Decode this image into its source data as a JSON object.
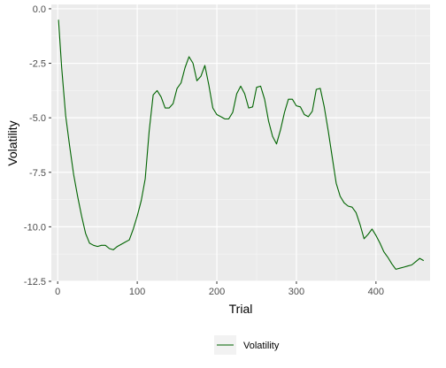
{
  "chart_data": {
    "type": "line",
    "title": "",
    "xlabel": "Trial",
    "ylabel": "Volatility",
    "xlim": [
      -8,
      468
    ],
    "ylim": [
      -12.5,
      0.2
    ],
    "x_ticks": [
      0,
      100,
      200,
      300,
      400
    ],
    "x_tick_labels": [
      "0",
      "100",
      "200",
      "300",
      "400"
    ],
    "y_ticks": [
      0,
      -2.5,
      -5,
      -7.5,
      -10,
      -12.5
    ],
    "y_tick_labels": [
      "0.0",
      "-2.5",
      "-5.0",
      "-7.5",
      "-10.0",
      "-12.5"
    ],
    "grid": true,
    "legend": {
      "position": "bottom",
      "entries": [
        "Volatility"
      ]
    },
    "colors": {
      "line": "#006400",
      "panel": "#ebebeb",
      "grid": "#ffffff"
    },
    "series": [
      {
        "name": "Volatility",
        "x": [
          1,
          5,
          10,
          15,
          20,
          25,
          30,
          35,
          40,
          45,
          50,
          55,
          60,
          65,
          70,
          75,
          80,
          85,
          90,
          95,
          100,
          105,
          110,
          115,
          120,
          125,
          130,
          135,
          140,
          145,
          150,
          155,
          160,
          165,
          170,
          175,
          180,
          185,
          190,
          195,
          200,
          205,
          210,
          215,
          220,
          225,
          230,
          235,
          240,
          245,
          250,
          255,
          260,
          265,
          270,
          275,
          280,
          285,
          290,
          295,
          300,
          305,
          310,
          315,
          320,
          325,
          330,
          335,
          340,
          345,
          350,
          355,
          360,
          365,
          370,
          375,
          380,
          385,
          390,
          395,
          400,
          405,
          410,
          415,
          420,
          425,
          430,
          435,
          440,
          445,
          450,
          455,
          460
        ],
        "y": [
          -0.5,
          -2.7,
          -4.9,
          -6.3,
          -7.6,
          -8.6,
          -9.5,
          -10.3,
          -10.75,
          -10.85,
          -10.9,
          -10.85,
          -10.85,
          -11.0,
          -11.05,
          -10.9,
          -10.8,
          -10.7,
          -10.6,
          -10.1,
          -9.5,
          -8.8,
          -7.8,
          -5.6,
          -3.95,
          -3.75,
          -4.05,
          -4.55,
          -4.55,
          -4.35,
          -3.65,
          -3.4,
          -2.7,
          -2.2,
          -2.5,
          -3.3,
          -3.1,
          -2.6,
          -3.5,
          -4.55,
          -4.85,
          -4.95,
          -5.05,
          -5.05,
          -4.75,
          -3.9,
          -3.55,
          -3.9,
          -4.55,
          -4.5,
          -3.6,
          -3.55,
          -4.15,
          -5.15,
          -5.85,
          -6.2,
          -5.55,
          -4.75,
          -4.15,
          -4.15,
          -4.45,
          -4.5,
          -4.85,
          -4.95,
          -4.7,
          -3.7,
          -3.65,
          -4.5,
          -5.6,
          -6.8,
          -8.0,
          -8.6,
          -8.9,
          -9.05,
          -9.1,
          -9.35,
          -9.9,
          -10.55,
          -10.35,
          -10.1,
          -10.4,
          -10.75,
          -11.15,
          -11.4,
          -11.7,
          -11.95,
          -11.9,
          -11.85,
          -11.8,
          -11.75,
          -11.6,
          -11.45,
          -11.55
        ]
      }
    ]
  }
}
